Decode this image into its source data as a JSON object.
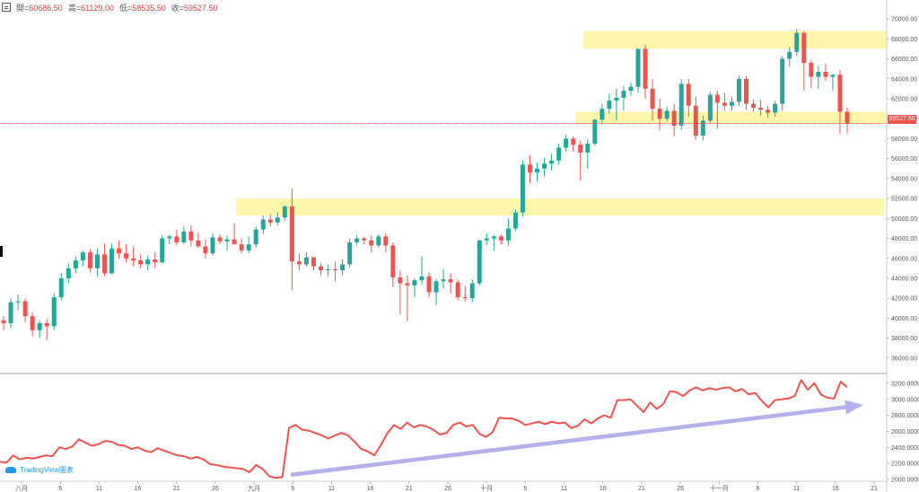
{
  "ohlc_header": {
    "open_label": "開=",
    "open": "60686.50",
    "high_label": "高=",
    "high": "61129.00",
    "low_label": "低=",
    "low": "58535.50",
    "close_label": "收=",
    "close": "59527.50"
  },
  "current_price_tag": "59527.50",
  "watermark": "TradingView圖表",
  "colors": {
    "up": "#26a69a",
    "down": "#ef5350",
    "zone": "#fff59d",
    "rsi_line": "#ef5350",
    "trend_arrow": "#b3b0ea"
  },
  "chart_data": [
    {
      "type": "candlestick",
      "title": "",
      "ylim": [
        35000,
        71000
      ],
      "y_ticks": [
        "36000.00",
        "38000.00",
        "40000.00",
        "42000.00",
        "44000.00",
        "46000.00",
        "48000.00",
        "50000.00",
        "52000.00",
        "54000.00",
        "56000.00",
        "58000.00",
        "60000.00",
        "62000.00",
        "64000.00",
        "66000.00",
        "68000.00",
        "70000.00"
      ],
      "zones": [
        {
          "low": 67000,
          "high": 68800
        },
        {
          "low": 59500,
          "high": 60700
        },
        {
          "low": 50300,
          "high": 52000
        }
      ],
      "current_price": 59527.5,
      "candles": [
        [
          39800,
          40200,
          38800,
          39500
        ],
        [
          39500,
          42000,
          39000,
          41600
        ],
        [
          41600,
          42400,
          40800,
          41700
        ],
        [
          41700,
          42000,
          39600,
          40200
        ],
        [
          40200,
          40600,
          38200,
          38800
        ],
        [
          38800,
          39800,
          38000,
          39500
        ],
        [
          39500,
          39900,
          37800,
          39200
        ],
        [
          39200,
          42500,
          38800,
          42100
        ],
        [
          42100,
          44500,
          41800,
          44000
        ],
        [
          44000,
          45500,
          43500,
          45000
        ],
        [
          45000,
          46200,
          44500,
          45800
        ],
        [
          45800,
          46800,
          45200,
          46600
        ],
        [
          46600,
          46900,
          44600,
          45000
        ],
        [
          45000,
          47000,
          44200,
          46400
        ],
        [
          46400,
          47500,
          44200,
          44500
        ],
        [
          44500,
          47500,
          44400,
          47000
        ],
        [
          47000,
          47800,
          46000,
          46500
        ],
        [
          46500,
          47400,
          45600,
          46000
        ],
        [
          46000,
          47200,
          45200,
          45800
        ],
        [
          45800,
          46400,
          45000,
          45400
        ],
        [
          45400,
          46300,
          44800,
          45900
        ],
        [
          45900,
          46600,
          45000,
          45600
        ],
        [
          45600,
          48300,
          45500,
          48000
        ],
        [
          48000,
          48400,
          47400,
          48200
        ],
        [
          48200,
          48900,
          47300,
          47600
        ],
        [
          47600,
          49200,
          47400,
          48700
        ],
        [
          48700,
          49300,
          47200,
          47800
        ],
        [
          47800,
          48600,
          47000,
          47200
        ],
        [
          47200,
          47900,
          46000,
          46500
        ],
        [
          46500,
          48500,
          46300,
          48100
        ],
        [
          48100,
          48400,
          47400,
          47700
        ],
        [
          47700,
          48300,
          46800,
          47900
        ],
        [
          47900,
          49500,
          47600,
          47400
        ],
        [
          47400,
          48000,
          46500,
          46800
        ],
        [
          46800,
          48200,
          46500,
          47400
        ],
        [
          47400,
          49200,
          47100,
          48900
        ],
        [
          48900,
          50300,
          48400,
          49900
        ],
        [
          49900,
          50400,
          49200,
          49600
        ],
        [
          49600,
          50600,
          49300,
          50100
        ],
        [
          50100,
          51300,
          49800,
          51200
        ],
        [
          51200,
          53000,
          42800,
          45700
        ],
        [
          45700,
          46500,
          44800,
          45400
        ],
        [
          45400,
          46600,
          45200,
          46100
        ],
        [
          46100,
          46200,
          44800,
          45200
        ],
        [
          45200,
          45500,
          44300,
          44800
        ],
        [
          44800,
          45400,
          44200,
          44900
        ],
        [
          44900,
          45700,
          43700,
          44800
        ],
        [
          44800,
          45900,
          44300,
          45400
        ],
        [
          45400,
          48000,
          45100,
          47600
        ],
        [
          47600,
          48300,
          47300,
          48000
        ],
        [
          48000,
          48200,
          47400,
          47800
        ],
        [
          47800,
          48300,
          46600,
          47300
        ],
        [
          47300,
          48400,
          47100,
          48200
        ],
        [
          48200,
          48500,
          46600,
          47300
        ],
        [
          47300,
          47600,
          43100,
          44100
        ],
        [
          44100,
          44800,
          40400,
          43500
        ],
        [
          43500,
          44300,
          39700,
          43300
        ],
        [
          43300,
          44000,
          42100,
          43800
        ],
        [
          43800,
          46200,
          43400,
          44200
        ],
        [
          44200,
          44600,
          42100,
          42600
        ],
        [
          42600,
          43900,
          41300,
          43700
        ],
        [
          43700,
          44900,
          43000,
          43900
        ],
        [
          43900,
          44500,
          42500,
          43600
        ],
        [
          43600,
          43900,
          41800,
          42100
        ],
        [
          42100,
          43200,
          41700,
          42000
        ],
        [
          42000,
          43900,
          41600,
          43500
        ],
        [
          43500,
          47900,
          43300,
          47800
        ],
        [
          47800,
          48500,
          47300,
          48000
        ],
        [
          48000,
          48300,
          46800,
          48200
        ],
        [
          48200,
          48400,
          47400,
          47800
        ],
        [
          47800,
          50000,
          47300,
          49000
        ],
        [
          49000,
          50900,
          48700,
          50600
        ],
        [
          50600,
          55800,
          50200,
          55400
        ],
        [
          55400,
          56300,
          53500,
          54600
        ],
        [
          54600,
          55600,
          53700,
          55000
        ],
        [
          55000,
          56100,
          54200,
          55500
        ],
        [
          55500,
          56500,
          54800,
          55800
        ],
        [
          55800,
          57500,
          55400,
          57100
        ],
        [
          57100,
          58400,
          56700,
          58000
        ],
        [
          58000,
          58200,
          56700,
          57400
        ],
        [
          57400,
          57800,
          53800,
          56600
        ],
        [
          56600,
          58000,
          55000,
          57500
        ],
        [
          57500,
          60000,
          57300,
          59900
        ],
        [
          59900,
          61500,
          59400,
          61000
        ],
        [
          61000,
          62500,
          60500,
          61800
        ],
        [
          61800,
          63000,
          59800,
          62100
        ],
        [
          62100,
          63300,
          60800,
          62800
        ],
        [
          62800,
          63600,
          62300,
          63200
        ],
        [
          63200,
          67000,
          62600,
          67000
        ],
        [
          67000,
          67400,
          62000,
          63000
        ],
        [
          63000,
          64000,
          59800,
          61000
        ],
        [
          61000,
          62000,
          58800,
          60000
        ],
        [
          60000,
          61200,
          59700,
          60800
        ],
        [
          60800,
          61500,
          58200,
          59300
        ],
        [
          59300,
          64000,
          58900,
          63500
        ],
        [
          63500,
          64000,
          60200,
          61300
        ],
        [
          61300,
          62200,
          57900,
          58300
        ],
        [
          58300,
          60300,
          57800,
          59800
        ],
        [
          59800,
          62700,
          59500,
          62400
        ],
        [
          62400,
          62800,
          59000,
          61600
        ],
        [
          61600,
          62600,
          60800,
          61300
        ],
        [
          61300,
          62200,
          60800,
          61700
        ],
        [
          61700,
          64300,
          61300,
          64000
        ],
        [
          64000,
          64300,
          60900,
          61500
        ],
        [
          61500,
          61900,
          60700,
          61100
        ],
        [
          61100,
          61900,
          60300,
          60900
        ],
        [
          60900,
          61300,
          60100,
          60600
        ],
        [
          60600,
          61800,
          60200,
          61500
        ],
        [
          61500,
          66300,
          60800,
          66000
        ],
        [
          66000,
          67200,
          65200,
          66700
        ],
        [
          66700,
          69000,
          66300,
          68600
        ],
        [
          68600,
          68800,
          62800,
          65600
        ],
        [
          65600,
          65900,
          63100,
          64200
        ],
        [
          64200,
          65300,
          63000,
          64700
        ],
        [
          64700,
          65500,
          63800,
          64200
        ],
        [
          64200,
          64500,
          62800,
          64400
        ],
        [
          64400,
          64900,
          58500,
          60700
        ],
        [
          60700,
          61100,
          58500,
          59500
        ]
      ],
      "x_labels": [
        "八月",
        "6",
        "11",
        "16",
        "21",
        "26",
        "九月",
        "6",
        "11",
        "16",
        "21",
        "26",
        "十月",
        "6",
        "11",
        "16",
        "21",
        "26",
        "十一月",
        "6",
        "11",
        "16",
        "21"
      ]
    },
    {
      "type": "line",
      "title": "",
      "ylim": [
        2000,
        3300
      ],
      "y_ticks": [
        "2000.0000",
        "2200.0000",
        "2400.0000",
        "2600.0000",
        "2800.0000",
        "3000.0000",
        "3200.0000"
      ],
      "values": [
        2220,
        2210,
        2300,
        2250,
        2270,
        2260,
        2280,
        2300,
        2290,
        2400,
        2380,
        2410,
        2500,
        2460,
        2420,
        2440,
        2480,
        2470,
        2430,
        2420,
        2380,
        2400,
        2360,
        2340,
        2390,
        2360,
        2330,
        2300,
        2290,
        2260,
        2280,
        2250,
        2190,
        2180,
        2160,
        2150,
        2140,
        2130,
        2090,
        2180,
        2130,
        2040,
        2020,
        2030,
        2640,
        2680,
        2620,
        2610,
        2580,
        2550,
        2510,
        2550,
        2580,
        2550,
        2470,
        2380,
        2350,
        2300,
        2430,
        2580,
        2680,
        2630,
        2710,
        2650,
        2680,
        2660,
        2620,
        2560,
        2580,
        2680,
        2710,
        2660,
        2680,
        2570,
        2530,
        2590,
        2770,
        2760,
        2760,
        2730,
        2680,
        2700,
        2720,
        2690,
        2720,
        2700,
        2710,
        2640,
        2670,
        2750,
        2700,
        2760,
        2800,
        2770,
        2990,
        2990,
        3000,
        2920,
        2840,
        2960,
        2880,
        2940,
        3100,
        3090,
        3040,
        3110,
        3150,
        3110,
        3140,
        3120,
        3140,
        3150,
        3100,
        3130,
        3060,
        3080,
        2980,
        2900,
        2990,
        3000,
        3010,
        3040,
        3240,
        3120,
        3200,
        3060,
        3020,
        3010,
        3220,
        3150
      ],
      "trend_arrow": {
        "from_value": 2060,
        "to_value": 2930
      }
    }
  ]
}
